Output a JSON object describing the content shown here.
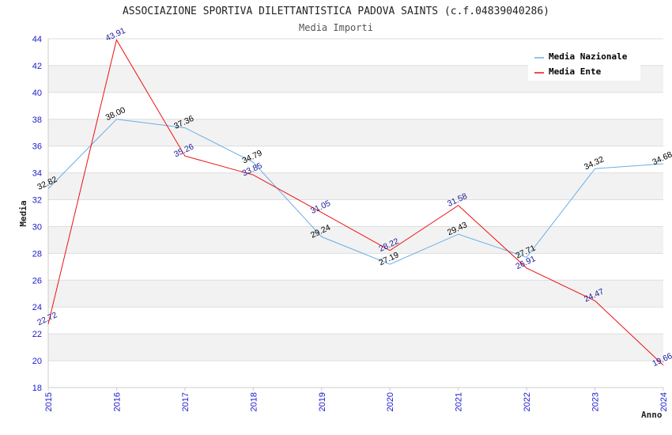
{
  "chart_data": {
    "type": "line",
    "title": "ASSOCIAZIONE SPORTIVA DILETTANTISTICA PADOVA SAINTS (c.f.04839040286)",
    "subtitle": "Media Importi",
    "xlabel": "Anno",
    "ylabel": "Media",
    "x": [
      "2015",
      "2016",
      "2017",
      "2018",
      "2019",
      "2020",
      "2021",
      "2022",
      "2023",
      "2024"
    ],
    "ylim": [
      18,
      44
    ],
    "yticks": [
      "18",
      "20",
      "22",
      "24",
      "26",
      "28",
      "30",
      "32",
      "34",
      "36",
      "38",
      "40",
      "42",
      "44"
    ],
    "grid": true,
    "legend_position": "top-right",
    "series": [
      {
        "name": "Media Nazionale",
        "color": "#6aaee8",
        "label_color": "#000000",
        "values": [
          32.82,
          38.0,
          37.36,
          34.79,
          29.24,
          27.19,
          29.43,
          27.71,
          34.32,
          34.68
        ],
        "labels": [
          "32.82",
          "38.00",
          "37.36",
          "34.79",
          "29.24",
          "27.19",
          "29.43",
          "27.71",
          "34.32",
          "34.68"
        ]
      },
      {
        "name": "Media Ente",
        "color": "#ee1111",
        "label_color": "#1a1a99",
        "values": [
          22.72,
          43.91,
          35.26,
          33.85,
          31.05,
          28.22,
          31.58,
          26.91,
          24.47,
          19.66
        ],
        "labels": [
          "22.72",
          "43.91",
          "35.26",
          "33.85",
          "31.05",
          "28.22",
          "31.58",
          "26.91",
          "24.47",
          "19.66"
        ]
      }
    ]
  }
}
